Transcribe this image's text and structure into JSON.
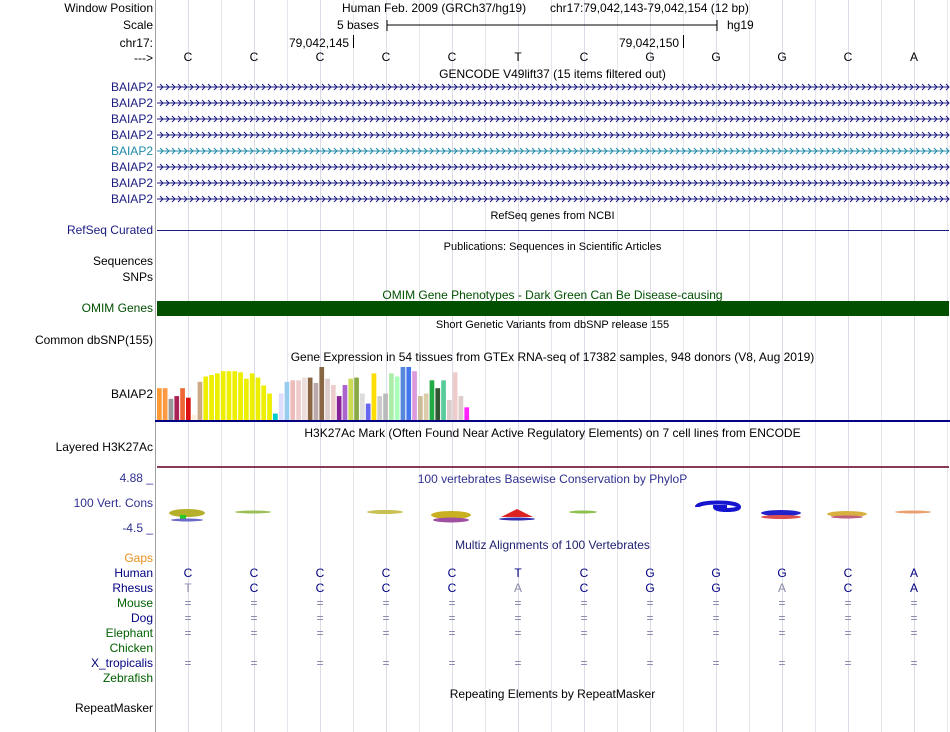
{
  "header": {
    "window_position_label": "Window Position",
    "assembly": "Human Feb. 2009 (GRCh37/hg19)",
    "position": "chr17:79,042,143-79,042,154 (12 bp)",
    "scale_label": "Scale",
    "scale_text": "5 bases",
    "scale_assembly": "hg19",
    "chrom_label": "chr17:",
    "coord_ticks": [
      {
        "label": "79,042,145",
        "base": 2
      },
      {
        "label": "79,042,150",
        "base": 7
      }
    ],
    "strand_label": "--->"
  },
  "bases": [
    "C",
    "C",
    "C",
    "C",
    "C",
    "T",
    "C",
    "G",
    "G",
    "G",
    "C",
    "A"
  ],
  "gencode": {
    "title": "GENCODE V49lift37 (15 items filtered out)",
    "items": [
      {
        "label": "BAIAP2",
        "color": "#1a1a80"
      },
      {
        "label": "BAIAP2",
        "color": "#1a1a80"
      },
      {
        "label": "BAIAP2",
        "color": "#1a1a80"
      },
      {
        "label": "BAIAP2",
        "color": "#1a1a80"
      },
      {
        "label": "BAIAP2",
        "color": "#1f8aa8"
      },
      {
        "label": "BAIAP2",
        "color": "#1a1a80"
      },
      {
        "label": "BAIAP2",
        "color": "#1a1a80"
      },
      {
        "label": "BAIAP2",
        "color": "#1a1a80"
      }
    ]
  },
  "refseq": {
    "title": "RefSeq genes from NCBI",
    "label": "RefSeq Curated",
    "color": "#1a1a80"
  },
  "publications": {
    "title": "Publications: Sequences in Scientific Articles",
    "labels": [
      "Sequences",
      "SNPs"
    ]
  },
  "omim": {
    "title": "OMIM Gene Phenotypes - Dark Green Can Be Disease-causing",
    "label": "OMIM Genes",
    "color": "#005000"
  },
  "dbsnp": {
    "title": "Short Genetic Variants from dbSNP release 155",
    "label": "Common dbSNP(155)"
  },
  "gtex": {
    "title": "Gene Expression in 54 tissues from GTEx RNA-seq of 17382 samples, 948 donors (V8, Aug 2019)",
    "label": "BAIAP2",
    "levels": [
      0.6,
      0.6,
      0.4,
      0.45,
      0.6,
      0.42,
      0.1,
      0.72,
      0.82,
      0.85,
      0.88,
      0.92,
      0.92,
      0.92,
      0.9,
      0.78,
      0.88,
      0.8,
      0.65,
      0.5,
      0.12,
      0.5,
      0.72,
      0.75,
      0.75,
      0.8,
      0.8,
      0.7,
      1.0,
      0.78,
      0.66,
      0.45,
      0.66,
      0.78,
      0.8,
      0.5,
      0.31,
      0.88,
      0.45,
      0.5,
      0.88,
      0.82,
      1.0,
      1.0,
      0.92,
      0.45,
      0.5,
      0.75,
      0.6,
      0.75,
      0.38,
      0.9,
      0.45,
      0.24
    ],
    "colors": [
      "#ff9933",
      "#ff9944",
      "#999999",
      "#aa2255",
      "#ee6633",
      "#dd1111",
      "#ffeedd",
      "#ccaa88",
      "#eeee00",
      "#eeee00",
      "#eeee00",
      "#eeee00",
      "#eeee00",
      "#eeee00",
      "#eeee00",
      "#eeee00",
      "#eeee00",
      "#eeee00",
      "#eeee00",
      "#eeee00",
      "#00cccc",
      "#ddddff",
      "#99ccee",
      "#eebbbb",
      "#eecccc",
      "#eedddd",
      "#886644",
      "#bbaaaa",
      "#886644",
      "#ddcccc",
      "#eecccc",
      "#882299",
      "#aa66cc",
      "#ccdd55",
      "#88aa44",
      "#dddddd",
      "#6666ee",
      "#ffdd00",
      "#cccccc",
      "#bbbbbb",
      "#aaeeaa",
      "#aaffbb",
      "#5588dd",
      "#4477ee",
      "#dd99dd",
      "#ccbb99",
      "#ddccaa",
      "#22aa44",
      "#335533",
      "#55cc99",
      "#ddcccc",
      "#eecccc",
      "#ddcccc",
      "#ff22ff"
    ],
    "bar_color": "#000080"
  },
  "h3k27ac": {
    "title": "H3K27Ac Mark (Often Found Near Active Regulatory Elements) on 7 cell lines from ENCODE",
    "label": "Layered H3K27Ac",
    "color": "#8a3a55"
  },
  "conservation": {
    "title": "100 vertebrates Basewise Conservation by PhyloP",
    "label": "100 Vert. Cons",
    "ymax": "4.88 _",
    "ymin": "-4.5 _",
    "title_color": "#303090"
  },
  "multiz": {
    "title": "Multiz Alignments of 100 Vertebrates",
    "title_color": "#202070",
    "gaps_label": "Gaps",
    "gaps_color": "#e89020",
    "species": [
      {
        "name": "Human",
        "color": "#000080",
        "row": [
          "C",
          "C",
          "C",
          "C",
          "C",
          "T",
          "C",
          "G",
          "G",
          "G",
          "C",
          "A"
        ]
      },
      {
        "name": "Rhesus",
        "color": "#000080",
        "row": [
          "T",
          "C",
          "C",
          "C",
          "C",
          "A",
          "C",
          "G",
          "G",
          "A",
          "C",
          "A"
        ]
      },
      {
        "name": "Mouse",
        "color": "#006000",
        "row": [
          "=",
          "=",
          "=",
          "=",
          "=",
          "=",
          "=",
          "=",
          "=",
          "=",
          "=",
          "="
        ]
      },
      {
        "name": "Dog",
        "color": "#000080",
        "row": [
          "=",
          "=",
          "=",
          "=",
          "=",
          "=",
          "=",
          "=",
          "=",
          "=",
          "=",
          "="
        ]
      },
      {
        "name": "Elephant",
        "color": "#006000",
        "row": [
          "=",
          "=",
          "=",
          "=",
          "=",
          "=",
          "=",
          "=",
          "=",
          "=",
          "=",
          "="
        ]
      },
      {
        "name": "Chicken",
        "color": "#006000",
        "row": [
          "",
          "",
          "",
          "",
          "",
          "",
          "",
          "",
          "",
          "",
          "",
          ""
        ]
      },
      {
        "name": "X_tropicalis",
        "color": "#000080",
        "row": [
          "=",
          "=",
          "=",
          "=",
          "=",
          "=",
          "=",
          "=",
          "=",
          "=",
          "=",
          "="
        ]
      },
      {
        "name": "Zebrafish",
        "color": "#006000",
        "row": [
          "",
          "",
          "",
          "",
          "",
          "",
          "",
          "",
          "",
          "",
          "",
          ""
        ]
      }
    ]
  },
  "repeatmasker": {
    "title": "Repeating Elements by RepeatMasker",
    "label": "RepeatMasker"
  }
}
